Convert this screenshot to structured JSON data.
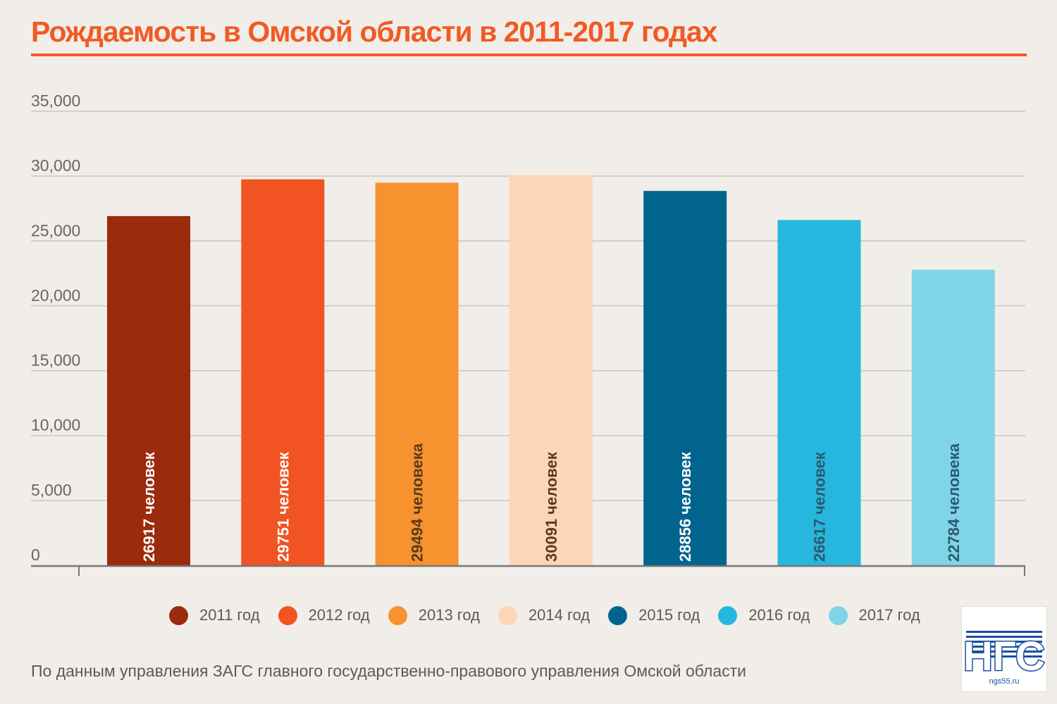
{
  "title": "Рождаемость в Омской области в 2011-2017 годах",
  "source_note": "По данным управления ЗАГС главного государственно-правового управления Омской области",
  "logo": {
    "text": "НГС",
    "site": "ngs55.ru"
  },
  "colors": {
    "accent": "#f15a24",
    "grid": "#c9c6c0",
    "axis": "#777777",
    "tick_text": "#666666"
  },
  "legend": [
    {
      "label": "2011 год",
      "color": "#9c2a0c"
    },
    {
      "label": "2012 год",
      "color": "#f15323"
    },
    {
      "label": "2013 год",
      "color": "#f7922f"
    },
    {
      "label": "2014 год",
      "color": "#fcd6b6"
    },
    {
      "label": "2015 год",
      "color": "#00648e"
    },
    {
      "label": "2016 год",
      "color": "#27b6de"
    },
    {
      "label": "2017 год",
      "color": "#7fd4e8"
    }
  ],
  "chart_data": {
    "type": "bar",
    "title": "Рождаемость в Омской области в 2011-2017 годах",
    "categories": [
      "2011 год",
      "2012 год",
      "2013 год",
      "2014 год",
      "2015 год",
      "2016 год",
      "2017 год"
    ],
    "values": [
      26917,
      29751,
      29494,
      30091,
      28856,
      26617,
      22784
    ],
    "data_labels": [
      "26917 человек",
      "29751 человек",
      "29494 человека",
      "30091 человек",
      "28856 человек",
      "26617 человек",
      "22784 человека"
    ],
    "label_colors": [
      "#ffffff",
      "#ffffff",
      "#5a3a1a",
      "#5a3a1a",
      "#ffffff",
      "#2b5a6e",
      "#2b5a6e"
    ],
    "colors": [
      "#9c2a0c",
      "#f15323",
      "#f7922f",
      "#fcd6b6",
      "#00648e",
      "#27b6de",
      "#7fd4e8"
    ],
    "y_ticks": [
      0,
      5000,
      10000,
      15000,
      20000,
      25000,
      30000,
      35000
    ],
    "y_tick_labels": [
      "0",
      "5,000",
      "10,000",
      "15,000",
      "20,000",
      "25,000",
      "30,000",
      "35,000"
    ],
    "ylim": [
      0,
      35000
    ],
    "grid": true,
    "legend_position": "bottom",
    "xlabel": "",
    "ylabel": ""
  }
}
